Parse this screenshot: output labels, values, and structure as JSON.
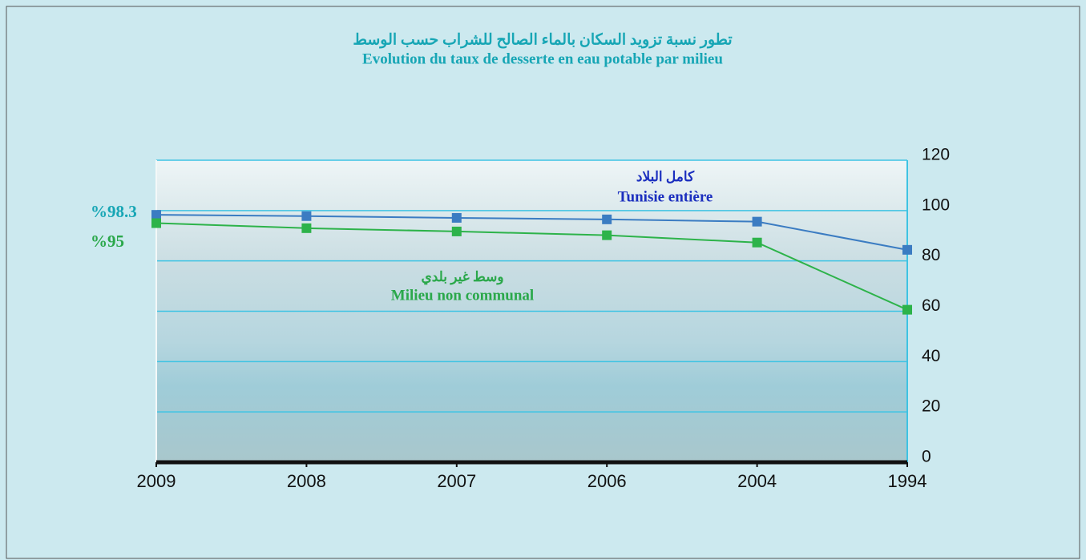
{
  "chart_data": {
    "type": "line",
    "title_ar": "تطور نسبة تزويد السكان بالماء الصالح للشراب حسب الوسط",
    "title": "Evolution du taux de desserte en eau potable par milieu",
    "categories": [
      "2009",
      "2008",
      "2007",
      "2006",
      "2004",
      "1994"
    ],
    "series": [
      {
        "name": "Tunisie entière",
        "name_ar": "كامل البلاد",
        "color": "#3b7cc2",
        "label_color": "#1b2fbf",
        "values": [
          98.3,
          97.8,
          97.1,
          96.5,
          95.6,
          84.4
        ],
        "value_labels": [
          "%98.3",
          null,
          null,
          null,
          null,
          null
        ],
        "value_label_color": "#17a6b5"
      },
      {
        "name": "Milieu non communal",
        "name_ar": "وسط غير بلدي",
        "color": "#2db34a",
        "label_color": "#2aa84a",
        "values": [
          95,
          93,
          91.7,
          90.2,
          87.3,
          60.6
        ],
        "value_labels": [
          "%95",
          null,
          null,
          null,
          null,
          null
        ],
        "value_label_color": "#2aa84a"
      }
    ],
    "ylim": [
      0,
      120
    ],
    "yticks": [
      0,
      20,
      40,
      60,
      80,
      100,
      120
    ],
    "grid": true,
    "y_axis_side": "right",
    "title_color": "#17a6b5",
    "grid_color": "#3ec3e3"
  }
}
